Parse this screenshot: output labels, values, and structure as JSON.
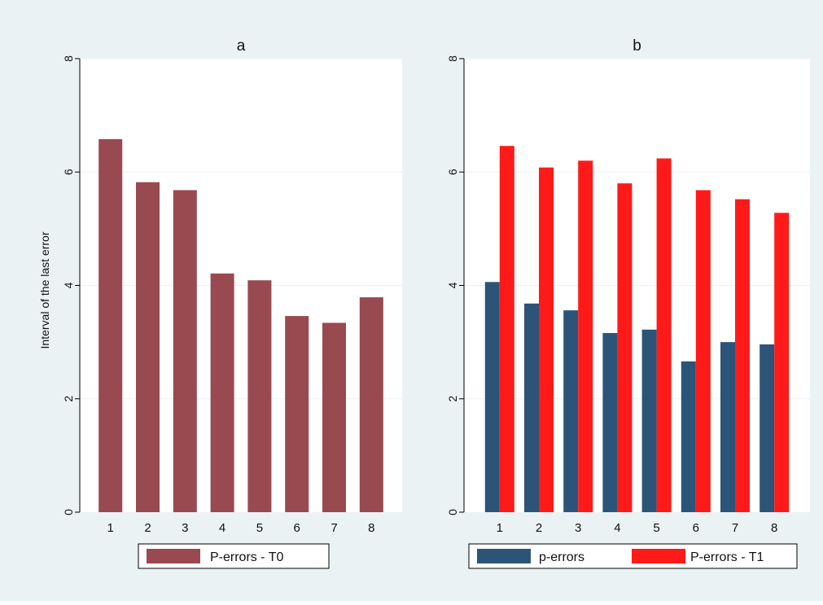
{
  "colors": {
    "background": "#eaf2f3",
    "plot_area": "#ffffff",
    "grid": "#eaf2f3",
    "axis": "#000000"
  },
  "chart_data": [
    {
      "type": "bar",
      "title": "a",
      "ylabel": "Interval of the last error",
      "xlabel": "",
      "categories": [
        "1",
        "2",
        "3",
        "4",
        "5",
        "6",
        "7",
        "8"
      ],
      "ylim": [
        0,
        8
      ],
      "yticks": [
        0,
        2,
        4,
        6,
        8
      ],
      "grid": true,
      "legend_position": "bottom",
      "series": [
        {
          "name": "P-errors - T0",
          "color": "#994950",
          "values": [
            6.58,
            5.82,
            5.68,
            4.21,
            4.09,
            3.46,
            3.34,
            3.79
          ]
        }
      ]
    },
    {
      "type": "bar",
      "title": "b",
      "ylabel": "",
      "xlabel": "",
      "categories": [
        "1",
        "2",
        "3",
        "4",
        "5",
        "6",
        "7",
        "8"
      ],
      "ylim": [
        0,
        8
      ],
      "yticks": [
        0,
        2,
        4,
        6,
        8
      ],
      "grid": true,
      "legend_position": "bottom",
      "series": [
        {
          "name": "p-errors",
          "color": "#2c5478",
          "values": [
            4.06,
            3.68,
            3.56,
            3.16,
            3.22,
            2.66,
            3.0,
            2.96
          ]
        },
        {
          "name": "P-errors - T1",
          "color": "#ff1a1a",
          "values": [
            6.46,
            6.08,
            6.2,
            5.8,
            6.24,
            5.68,
            5.52,
            5.28
          ]
        }
      ]
    }
  ]
}
